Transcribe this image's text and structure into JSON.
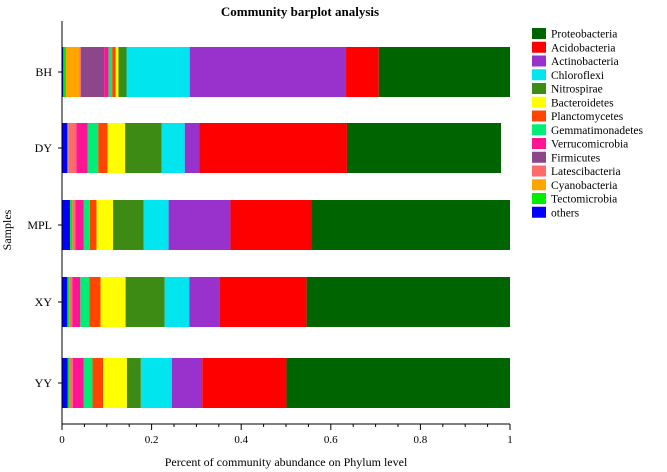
{
  "chart_data": {
    "type": "bar",
    "orientation": "horizontal",
    "stacked": true,
    "title": "Community barplot analysis",
    "xlabel": "Percent of community abundance on Phylum level",
    "ylabel": "Samples",
    "xlim": [
      0,
      1
    ],
    "xticks": [
      "0",
      "0.2",
      "0.4",
      "0.6",
      "0.8",
      "1"
    ],
    "xtick_values": [
      0,
      0.2,
      0.4,
      0.6,
      0.8,
      1
    ],
    "categories": [
      "BH",
      "DY",
      "MPL",
      "XY",
      "YY"
    ],
    "legend_position": "right",
    "series": [
      {
        "name": "Proteobacteria",
        "color": "#006400",
        "values": [
          0.293,
          0.344,
          0.443,
          0.454,
          0.499
        ]
      },
      {
        "name": "Acidobacteria",
        "color": "#ff0000",
        "values": [
          0.073,
          0.33,
          0.181,
          0.195,
          0.188
        ]
      },
      {
        "name": "Actinobacteria",
        "color": "#9932cc",
        "values": [
          0.349,
          0.032,
          0.138,
          0.067,
          0.068
        ]
      },
      {
        "name": "Chloroflexi",
        "color": "#00e5ee",
        "values": [
          0.141,
          0.052,
          0.056,
          0.055,
          0.069
        ]
      },
      {
        "name": "Nitrospirae",
        "color": "#3d8b15",
        "values": [
          0.018,
          0.081,
          0.068,
          0.087,
          0.031
        ]
      },
      {
        "name": "Bacteroidetes",
        "color": "#ffff00",
        "values": [
          0.006,
          0.039,
          0.037,
          0.056,
          0.053
        ]
      },
      {
        "name": "Planctomycetes",
        "color": "#ff4500",
        "values": [
          0.008,
          0.021,
          0.015,
          0.025,
          0.024
        ]
      },
      {
        "name": "Gemmatimonadetes",
        "color": "#00ee76",
        "values": [
          0.008,
          0.024,
          0.014,
          0.02,
          0.02
        ]
      },
      {
        "name": "Verrucomicrobia",
        "color": "#ff1493",
        "values": [
          0.01,
          0.025,
          0.018,
          0.018,
          0.024
        ]
      },
      {
        "name": "Firmicutes",
        "color": "#8b4789",
        "values": [
          0.052,
          0.0,
          0.0,
          0.0,
          0.0
        ]
      },
      {
        "name": "Latescibacteria",
        "color": "#ff6a6a",
        "values": [
          0.003,
          0.018,
          0.007,
          0.007,
          0.007
        ]
      },
      {
        "name": "Cyanobacteria",
        "color": "#ffa500",
        "values": [
          0.03,
          0.0,
          0.0,
          0.0,
          0.0
        ]
      },
      {
        "name": "Tectomicrobia",
        "color": "#00ee00",
        "values": [
          0.006,
          0.002,
          0.005,
          0.004,
          0.004
        ]
      },
      {
        "name": "others",
        "color": "#0000ff",
        "values": [
          0.003,
          0.012,
          0.018,
          0.012,
          0.013
        ]
      }
    ]
  }
}
